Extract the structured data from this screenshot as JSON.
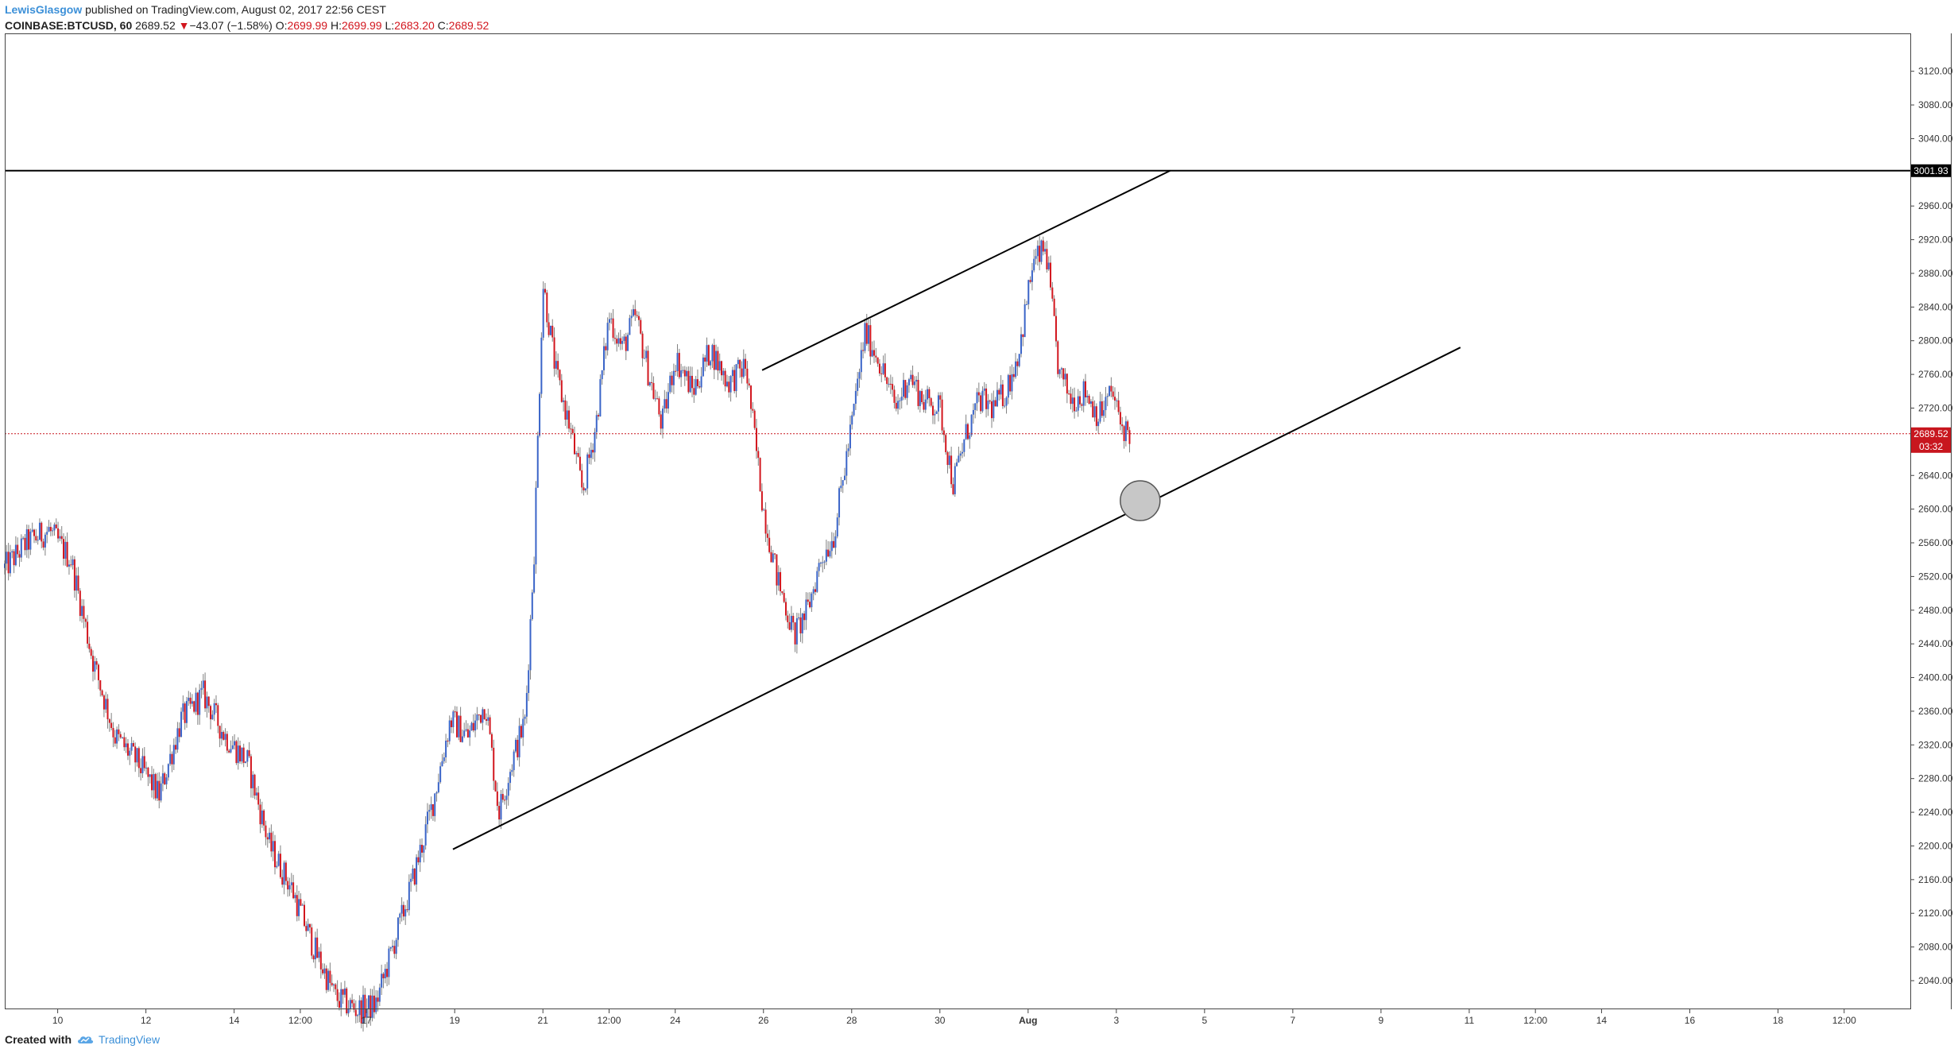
{
  "header": {
    "author": "LewisGlasgow",
    "published": "published on TradingView.com, August 02, 2017 22:56 CEST",
    "symbol": "COINBASE:BTCUSD, 60",
    "price": "2689.52",
    "change_arrow": "▼",
    "change": "−43.07 (−1.58%)",
    "o_label": "O:",
    "o_value": "2699.99",
    "h_label": "H:",
    "h_value": "2699.99",
    "l_label": "L:",
    "l_value": "2683.20",
    "c_label": "C:",
    "c_value": "2689.52"
  },
  "footer": {
    "created_with": "Created with",
    "brand": "TradingView",
    "logo_icon": "tradingview-cloud-icon"
  },
  "chart_data": {
    "type": "candlestick",
    "y_ticks": [
      "3120.00",
      "3080.00",
      "3040.00",
      "2960.00",
      "2920.00",
      "2880.00",
      "2840.00",
      "2800.00",
      "2760.00",
      "2720.00",
      "2640.00",
      "2600.00",
      "2560.00",
      "2520.00",
      "2480.00",
      "2440.00",
      "2400.00",
      "2360.00",
      "2320.00",
      "2280.00",
      "2240.00",
      "2200.00",
      "2160.00",
      "2120.00",
      "2080.00",
      "2040.00"
    ],
    "y_tick_values": [
      3120,
      3080,
      3040,
      2960,
      2920,
      2880,
      2840,
      2800,
      2760,
      2720,
      2640,
      2600,
      2560,
      2520,
      2480,
      2440,
      2400,
      2360,
      2320,
      2280,
      2240,
      2200,
      2160,
      2120,
      2080,
      2040
    ],
    "ylim": [
      2006,
      3165
    ],
    "x_ticks": [
      "10",
      "12",
      "14",
      "12:00",
      "17",
      "19",
      "21",
      "12:00",
      "24",
      "26",
      "28",
      "30",
      "Aug",
      "3",
      "5",
      "7",
      "9",
      "11",
      "12:00",
      "14",
      "16",
      "18",
      "12:00"
    ],
    "x_tick_days": [
      10,
      12,
      14,
      15.5,
      17,
      19,
      21,
      22.5,
      24,
      26,
      28,
      30,
      32,
      34,
      36,
      38,
      40,
      42,
      43.5,
      45,
      47,
      49,
      50.5
    ],
    "x_range_days": [
      8.8,
      52
    ],
    "last_price": {
      "label": "2689.52",
      "value": 2689.52,
      "countdown": "03:32",
      "color": "#c8161e"
    },
    "horizontal_line": {
      "label": "3001.93",
      "value": 3001.93
    },
    "trendlines": [
      {
        "name": "upper-channel-line",
        "from": [
          25.97,
          2765
        ],
        "to": [
          35.22,
          3001.93
        ]
      },
      {
        "name": "lower-channel-line",
        "from": [
          18.96,
          2196
        ],
        "to": [
          41.8,
          2792
        ]
      }
    ],
    "marker": {
      "name": "support-test-circle",
      "x": 34.54,
      "y": 2610
    },
    "colors": {
      "up": "#3a64c8",
      "down": "#d2161e",
      "wick": "#808080"
    },
    "close_path": [
      [
        8.8,
        2530
      ],
      [
        9.3,
        2560
      ],
      [
        9.8,
        2575
      ],
      [
        10.3,
        2540
      ],
      [
        10.8,
        2420
      ],
      [
        11.3,
        2330
      ],
      [
        11.8,
        2300
      ],
      [
        12.3,
        2260
      ],
      [
        12.8,
        2350
      ],
      [
        13.3,
        2380
      ],
      [
        13.8,
        2330
      ],
      [
        14.3,
        2300
      ],
      [
        14.8,
        2200
      ],
      [
        15.3,
        2150
      ],
      [
        15.8,
        2080
      ],
      [
        16.3,
        2020
      ],
      [
        16.8,
        2005
      ],
      [
        17.2,
        2010
      ],
      [
        17.6,
        2080
      ],
      [
        18.0,
        2150
      ],
      [
        18.5,
        2250
      ],
      [
        18.9,
        2350
      ],
      [
        19.3,
        2330
      ],
      [
        19.7,
        2370
      ],
      [
        20.0,
        2240
      ],
      [
        20.3,
        2300
      ],
      [
        20.6,
        2350
      ],
      [
        20.8,
        2550
      ],
      [
        21.0,
        2870
      ],
      [
        21.3,
        2760
      ],
      [
        21.6,
        2700
      ],
      [
        21.9,
        2620
      ],
      [
        22.2,
        2700
      ],
      [
        22.5,
        2830
      ],
      [
        22.8,
        2790
      ],
      [
        23.1,
        2830
      ],
      [
        23.4,
        2760
      ],
      [
        23.7,
        2700
      ],
      [
        24.0,
        2780
      ],
      [
        24.4,
        2740
      ],
      [
        24.8,
        2790
      ],
      [
        25.2,
        2750
      ],
      [
        25.6,
        2770
      ],
      [
        26.0,
        2600
      ],
      [
        26.3,
        2520
      ],
      [
        26.7,
        2450
      ],
      [
        27.0,
        2480
      ],
      [
        27.3,
        2540
      ],
      [
        27.6,
        2570
      ],
      [
        28.0,
        2700
      ],
      [
        28.3,
        2810
      ],
      [
        28.6,
        2780
      ],
      [
        29.0,
        2720
      ],
      [
        29.3,
        2760
      ],
      [
        29.6,
        2730
      ],
      [
        30.0,
        2720
      ],
      [
        30.3,
        2630
      ],
      [
        30.6,
        2690
      ],
      [
        30.9,
        2730
      ],
      [
        31.2,
        2720
      ],
      [
        31.5,
        2740
      ],
      [
        31.8,
        2790
      ],
      [
        32.1,
        2890
      ],
      [
        32.4,
        2910
      ],
      [
        32.7,
        2760
      ],
      [
        33.0,
        2730
      ],
      [
        33.3,
        2740
      ],
      [
        33.6,
        2710
      ],
      [
        33.9,
        2740
      ],
      [
        34.1,
        2700
      ],
      [
        34.3,
        2689.52
      ]
    ]
  }
}
